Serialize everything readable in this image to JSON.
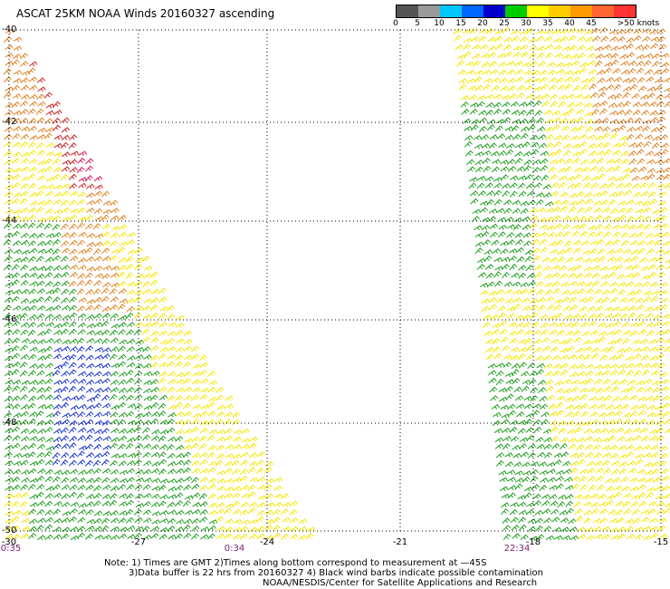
{
  "title": "ASCAT 25KM NOAA Winds 20160327 ascending",
  "colorbar": {
    "colors": [
      "#555555",
      "#9a9a9a",
      "#00c8ff",
      "#0066ff",
      "#0000cc",
      "#00cc00",
      "#ffff00",
      "#ffcc00",
      "#ff9900",
      "#ff6633",
      "#ff3333",
      "#cc3333",
      "#aa5533",
      "#cc33cc",
      "#ff00ff",
      "#9900ff",
      "#330099"
    ],
    "labels": [
      "0",
      "5",
      "10",
      "15",
      "20",
      "25",
      "30",
      "35",
      "40",
      "45",
      ">50 knots"
    ]
  },
  "lat_labels": [
    "-40",
    "-42",
    "-44",
    "-46",
    "-48",
    "-50"
  ],
  "lon_labels": [
    "-30",
    "-27",
    "-24",
    "-21",
    "-18",
    "-15"
  ],
  "times": [
    "0:35",
    "0:34",
    "22:34"
  ],
  "notes": [
    "Note: 1) Times are GMT 2)Times along bottom correspond to measurement at —45S",
    "3)Data buffer is 22 hrs from 20160327 4) Black wind barbs indicate possible contamination",
    "NOAA/NESDIS/Center for Satellite Applications and Research"
  ],
  "colors": {
    "orange": "#e08020",
    "red": "#cc2020",
    "magenta": "#dd1060",
    "yellow": "#f5e600",
    "green": "#1e9e1e",
    "blue": "#1830d0",
    "gridline": "#000000"
  }
}
